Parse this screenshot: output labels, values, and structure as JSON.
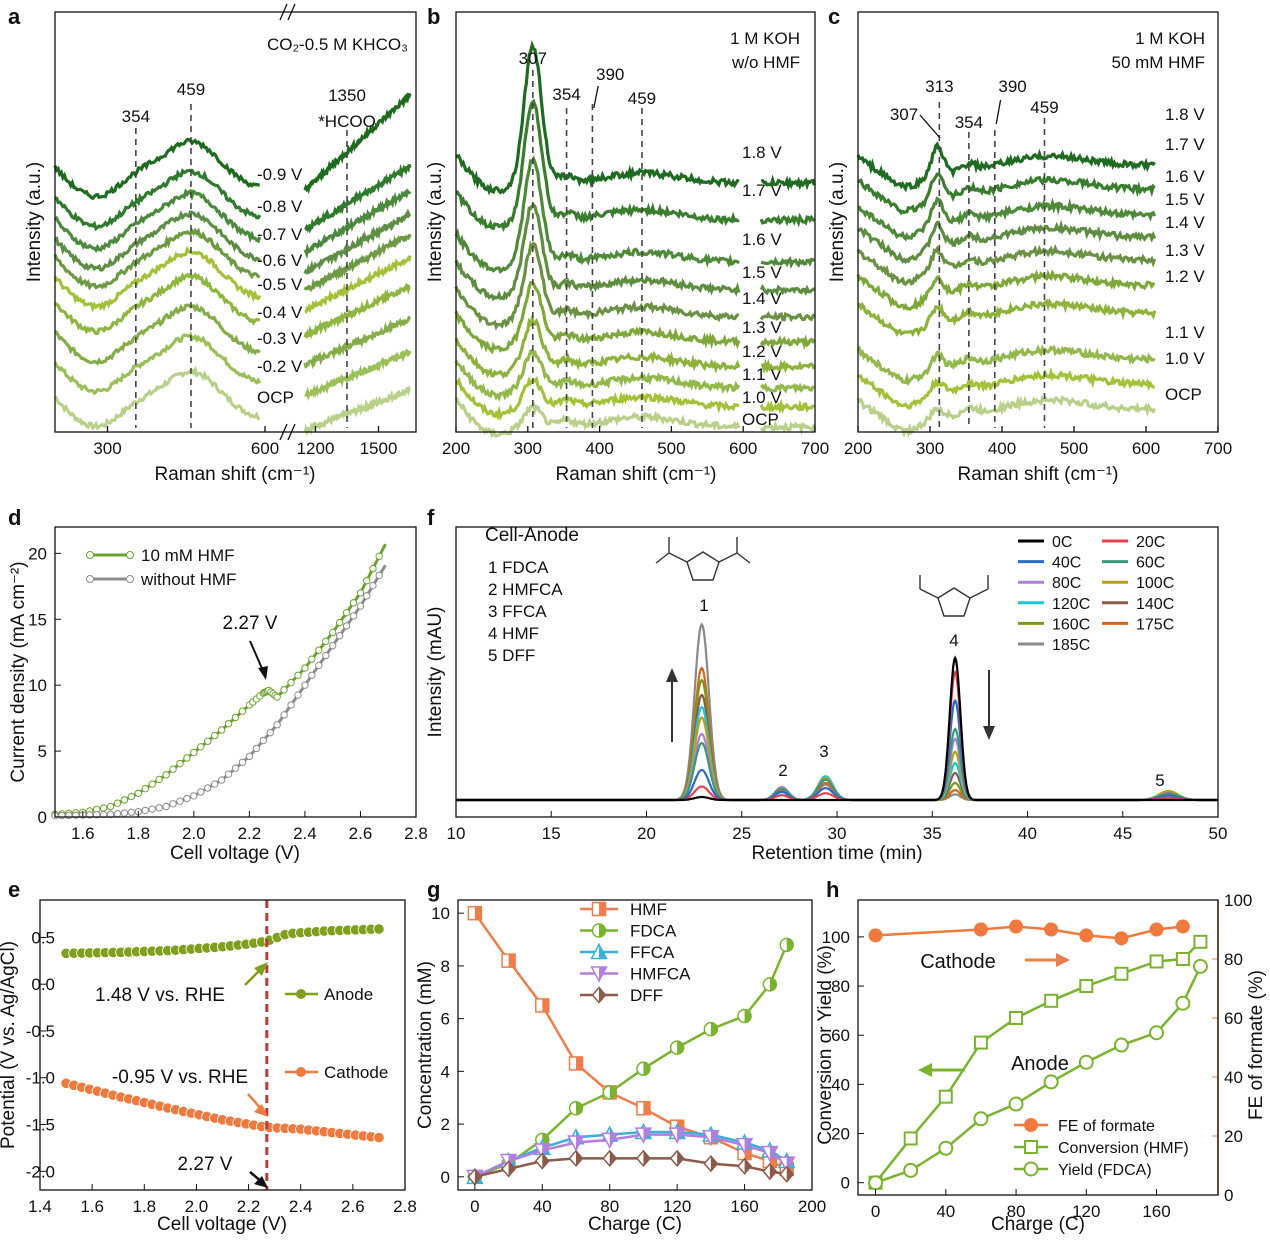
{
  "chart_data": [
    {
      "panel": "a",
      "type": "line",
      "title": "CO₂-0.5 M KHCO₃",
      "xlabel": "Raman shift (cm⁻¹)",
      "ylabel": "Intensity (a.u.)",
      "x_ticks": [
        "300",
        "600",
        "1200",
        "1500"
      ],
      "peak_labels": [
        "354",
        "459",
        "1350",
        "*HCOO"
      ],
      "series": [
        {
          "name": "OCP",
          "color": "#b9d08a"
        },
        {
          "name": "-0.2 V",
          "color": "#9bc05a"
        },
        {
          "name": "-0.3 V",
          "color": "#86ad4a"
        },
        {
          "name": "-0.4 V",
          "color": "#8fb63f"
        },
        {
          "name": "-0.5 V",
          "color": "#a3c23a"
        },
        {
          "name": "-0.6 V",
          "color": "#6f9a44"
        },
        {
          "name": "-0.7 V",
          "color": "#5e8e46"
        },
        {
          "name": "-0.8 V",
          "color": "#4b8a3c"
        },
        {
          "name": "-0.9 V",
          "color": "#2f7a2c"
        },
        {
          "name": "",
          "color": "#1e6b1e"
        }
      ]
    },
    {
      "panel": "b",
      "type": "line",
      "title_lines": [
        "1 M KOH",
        "w/o HMF"
      ],
      "xlabel": "Raman shift (cm⁻¹)",
      "ylabel": "Intensity (a.u.)",
      "xlim": [
        200,
        700
      ],
      "x_ticks": [
        200,
        300,
        400,
        500,
        600,
        700
      ],
      "peak_labels": [
        "307",
        "354",
        "390",
        "459"
      ],
      "series": [
        {
          "name": "OCP",
          "color": "#b9d08a"
        },
        {
          "name": "1.0 V",
          "color": "#a3c23a"
        },
        {
          "name": "1.1 V",
          "color": "#93b84c"
        },
        {
          "name": "1.2 V",
          "color": "#8db33c"
        },
        {
          "name": "1.3 V",
          "color": "#7fa83a"
        },
        {
          "name": "1.4 V",
          "color": "#6b9244"
        },
        {
          "name": "1.5 V",
          "color": "#5e8c40"
        },
        {
          "name": "1.6 V",
          "color": "#4f8a3a"
        },
        {
          "name": "1.7 V",
          "color": "#3a7d2f"
        },
        {
          "name": "1.8 V",
          "color": "#1f6b22"
        }
      ]
    },
    {
      "panel": "c",
      "type": "line",
      "title_lines": [
        "1 M KOH",
        "50 mM HMF"
      ],
      "xlabel": "Raman shift (cm⁻¹)",
      "ylabel": "Intensity (a.u.)",
      "xlim": [
        200,
        700
      ],
      "x_ticks": [
        200,
        300,
        400,
        500,
        600,
        700
      ],
      "peak_labels": [
        "307",
        "313",
        "354",
        "390",
        "459"
      ],
      "series": [
        {
          "name": "OCP",
          "color": "#b9d08a"
        },
        {
          "name": "1.0 V",
          "color": "#a3c23a"
        },
        {
          "name": "1.1 V",
          "color": "#93b84c"
        },
        {
          "name": "1.2 V",
          "color": "#8db33c"
        },
        {
          "name": "1.3 V",
          "color": "#7fa83a"
        },
        {
          "name": "1.4 V",
          "color": "#6b9244"
        },
        {
          "name": "1.5 V",
          "color": "#5e8c40"
        },
        {
          "name": "1.6 V",
          "color": "#4f8a3a"
        },
        {
          "name": "1.7 V",
          "color": "#3a7d2f"
        },
        {
          "name": "1.8 V",
          "color": "#1f6b22"
        }
      ]
    },
    {
      "panel": "d",
      "type": "line",
      "xlabel": "Cell voltage (V)",
      "ylabel": "Current density (mA cm⁻²)",
      "xlim": [
        1.5,
        2.8
      ],
      "ylim": [
        0,
        22
      ],
      "x_ticks": [
        1.6,
        1.8,
        2.0,
        2.2,
        2.4,
        2.6,
        2.8
      ],
      "y_ticks": [
        0,
        5,
        10,
        15,
        20
      ],
      "annotation": "2.27 V",
      "series": [
        {
          "name": "10 mM HMF",
          "color": "#6ea22f",
          "x": [
            1.5,
            1.6,
            1.7,
            1.8,
            1.9,
            2.0,
            2.1,
            2.2,
            2.25,
            2.27,
            2.3,
            2.4,
            2.5,
            2.6,
            2.69
          ],
          "y": [
            0.2,
            0.35,
            0.8,
            1.8,
            3.2,
            4.9,
            6.6,
            8.5,
            9.4,
            9.6,
            9.1,
            11.3,
            14.0,
            17.0,
            20.7
          ]
        },
        {
          "name": "without HMF",
          "color": "#8c8c8c",
          "x": [
            1.5,
            1.6,
            1.7,
            1.8,
            1.9,
            2.0,
            2.1,
            2.2,
            2.3,
            2.4,
            2.5,
            2.6,
            2.69
          ],
          "y": [
            0.1,
            0.15,
            0.2,
            0.4,
            0.8,
            1.6,
            2.8,
            4.6,
            7.0,
            10.0,
            13.0,
            16.0,
            19.1
          ]
        }
      ]
    },
    {
      "panel": "f",
      "type": "line",
      "title": "Cell-Anode",
      "xlabel": "Retention time (min)",
      "ylabel": "Intensity (mAU)",
      "xlim": [
        10,
        50
      ],
      "x_ticks": [
        10,
        15,
        20,
        25,
        30,
        35,
        40,
        45,
        50
      ],
      "compounds": [
        "1  FDCA",
        "2  HMFCA",
        "3  FFCA",
        "4  HMF",
        "5  DFF"
      ],
      "peak_numbers": [
        "1",
        "2",
        "3",
        "4",
        "5"
      ],
      "peak_positions_min": [
        22.9,
        27.1,
        29.4,
        36.2,
        47.4
      ],
      "series": [
        {
          "name": "0C",
          "color": "#000000",
          "heights": [
            0.02,
            0.0,
            0.0,
            1.0,
            0.0
          ]
        },
        {
          "name": "20C",
          "color": "#e8414b",
          "heights": [
            0.09,
            0.03,
            0.04,
            0.9,
            0.01
          ]
        },
        {
          "name": "40C",
          "color": "#2a6bc7",
          "heights": [
            0.2,
            0.05,
            0.07,
            0.7,
            0.02
          ]
        },
        {
          "name": "60C",
          "color": "#3a9a78",
          "heights": [
            0.38,
            0.07,
            0.12,
            0.5,
            0.03
          ]
        },
        {
          "name": "80C",
          "color": "#b27fd6",
          "heights": [
            0.44,
            0.08,
            0.12,
            0.43,
            0.03
          ]
        },
        {
          "name": "100C",
          "color": "#b6a21c",
          "heights": [
            0.55,
            0.08,
            0.13,
            0.34,
            0.04
          ]
        },
        {
          "name": "120C",
          "color": "#1fc4d8",
          "heights": [
            0.62,
            0.08,
            0.14,
            0.26,
            0.04
          ]
        },
        {
          "name": "140C",
          "color": "#8b5a4a",
          "heights": [
            0.7,
            0.08,
            0.13,
            0.19,
            0.04
          ]
        },
        {
          "name": "160C",
          "color": "#7a9a1c",
          "heights": [
            0.8,
            0.07,
            0.12,
            0.12,
            0.04
          ]
        },
        {
          "name": "175C",
          "color": "#d8651a",
          "heights": [
            0.88,
            0.06,
            0.1,
            0.07,
            0.03
          ]
        },
        {
          "name": "185C",
          "color": "#8a8a8a",
          "heights": [
            1.17,
            0.06,
            0.09,
            0.04,
            0.03
          ]
        }
      ]
    },
    {
      "panel": "e",
      "type": "line",
      "xlabel": "Cell voltage (V)",
      "ylabel": "Potential (V vs. Ag/AgCl)",
      "xlim": [
        1.4,
        2.8
      ],
      "ylim": [
        -2.2,
        0.9
      ],
      "x_ticks": [
        1.4,
        1.6,
        1.8,
        2.0,
        2.2,
        2.4,
        2.6,
        2.8
      ],
      "y_ticks": [
        0.5,
        0.0,
        -0.5,
        -1.0,
        -1.5,
        -2.0
      ],
      "annotations": [
        "1.48 V vs. RHE",
        "-0.95 V vs. RHE",
        "2.27 V"
      ],
      "vline_x": 2.27,
      "series": [
        {
          "name": "Anode",
          "color": "#7fa01c",
          "x": [
            1.5,
            1.7,
            1.9,
            2.1,
            2.2,
            2.27,
            2.35,
            2.5,
            2.7
          ],
          "y": [
            0.33,
            0.34,
            0.36,
            0.4,
            0.43,
            0.46,
            0.54,
            0.57,
            0.59
          ]
        },
        {
          "name": "Cathode",
          "color": "#f07a3e",
          "x": [
            1.5,
            1.7,
            1.9,
            2.1,
            2.27,
            2.4,
            2.5,
            2.7
          ],
          "y": [
            -1.06,
            -1.2,
            -1.33,
            -1.45,
            -1.53,
            -1.55,
            -1.58,
            -1.64
          ]
        }
      ]
    },
    {
      "panel": "g",
      "type": "line",
      "xlabel": "Charge (C)",
      "ylabel": "Concentration (mM)",
      "xlim": [
        -10,
        200
      ],
      "ylim": [
        -0.5,
        10.5
      ],
      "x_ticks": [
        0,
        40,
        80,
        120,
        160,
        200
      ],
      "y_ticks": [
        0,
        2,
        4,
        6,
        8,
        10
      ],
      "x": [
        0,
        20,
        40,
        60,
        80,
        100,
        120,
        140,
        160,
        175,
        185
      ],
      "series": [
        {
          "name": "HMF",
          "color": "#ed7d4a",
          "marker": "square",
          "values": [
            10.0,
            8.2,
            6.5,
            4.3,
            3.2,
            2.6,
            1.9,
            1.5,
            0.9,
            0.6,
            0.3
          ]
        },
        {
          "name": "FDCA",
          "color": "#79b32f",
          "marker": "circle",
          "values": [
            0.0,
            0.5,
            1.4,
            2.6,
            3.2,
            4.1,
            4.9,
            5.6,
            6.1,
            7.3,
            8.8
          ]
        },
        {
          "name": "FFCA",
          "color": "#3bb0d8",
          "marker": "triangle-up",
          "values": [
            0.0,
            0.6,
            1.1,
            1.5,
            1.6,
            1.7,
            1.7,
            1.6,
            1.3,
            1.0,
            0.6
          ]
        },
        {
          "name": "HMFCA",
          "color": "#b07fe0",
          "marker": "triangle-down",
          "values": [
            0.0,
            0.6,
            1.0,
            1.3,
            1.4,
            1.6,
            1.6,
            1.5,
            1.2,
            0.9,
            0.5
          ]
        },
        {
          "name": "DFF",
          "color": "#8b5a4a",
          "marker": "diamond",
          "values": [
            0.0,
            0.3,
            0.6,
            0.7,
            0.7,
            0.7,
            0.7,
            0.5,
            0.4,
            0.2,
            0.1
          ]
        }
      ]
    },
    {
      "panel": "h",
      "type": "line",
      "xlabel": "Charge (C)",
      "ylabel": "Conversion or Yield (%)",
      "ylabel_right": "FE of formate (%)",
      "xlim": [
        -10,
        195
      ],
      "ylim": [
        -5,
        115
      ],
      "ylim_right": [
        0,
        100
      ],
      "x_ticks": [
        0,
        40,
        80,
        120,
        160
      ],
      "y_ticks": [
        0,
        20,
        40,
        60,
        80,
        100
      ],
      "y_ticks_right": [
        0,
        20,
        40,
        60,
        80,
        100
      ],
      "annotations": [
        "Cathode",
        "Anode"
      ],
      "series": [
        {
          "name": "FE of formate",
          "axis": "right",
          "color": "#f07a3e",
          "marker": "filled-circle",
          "x": [
            0,
            60,
            80,
            100,
            120,
            140,
            160,
            175
          ],
          "values": [
            88,
            90,
            91,
            90,
            88,
            87,
            90,
            91
          ]
        },
        {
          "name": "Conversion (HMF)",
          "axis": "left",
          "color": "#79b32f",
          "marker": "square",
          "x": [
            0,
            20,
            40,
            60,
            80,
            100,
            120,
            140,
            160,
            175,
            185
          ],
          "values": [
            0,
            18,
            35,
            57,
            67,
            74,
            80,
            85,
            90,
            91,
            98
          ]
        },
        {
          "name": "Yield (FDCA)",
          "axis": "left",
          "color": "#79b32f",
          "marker": "circle",
          "x": [
            0,
            20,
            40,
            60,
            80,
            100,
            120,
            140,
            160,
            175,
            185
          ],
          "values": [
            0,
            5,
            14,
            26,
            32,
            41,
            49,
            56,
            61,
            73,
            88
          ]
        }
      ]
    }
  ]
}
